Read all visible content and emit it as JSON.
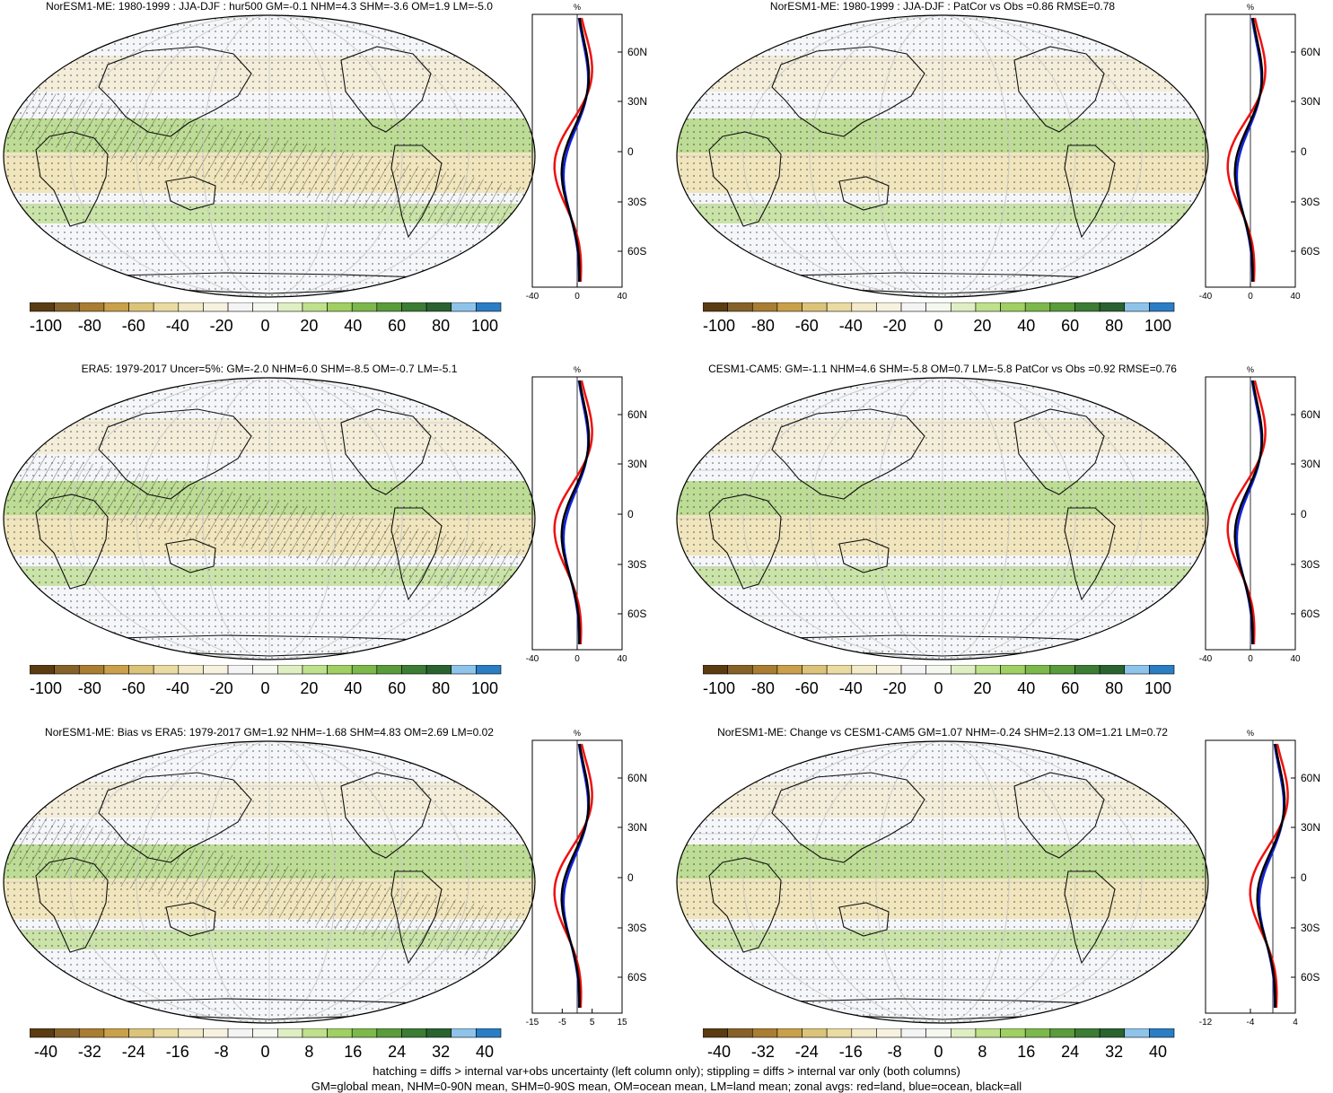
{
  "panels": [
    {
      "id": "p1",
      "title": "NorESM1-ME: 1980-1999 : JJA-DJF : hur500 GM=-0.1 NHM=4.3 SHM=-3.6 OM=1.9 LM=-5.0",
      "hatching": true,
      "colorbar_labels": [
        "-100",
        "-80",
        "-60",
        "-40",
        "-20",
        "0",
        "20",
        "40",
        "60",
        "80",
        "100"
      ],
      "profile": {
        "unit": "%",
        "x_ticks": [
          "-40",
          "0",
          "40"
        ],
        "x_values": [
          -40,
          0,
          40
        ],
        "lat_ticks": [
          "60N",
          "30N",
          "0",
          "30S",
          "60S"
        ]
      }
    },
    {
      "id": "p2",
      "title": "NorESM1-ME: 1980-1999 : JJA-DJF : PatCor vs Obs =0.86 RMSE=0.78",
      "hatching": false,
      "colorbar_labels": [
        "-100",
        "-80",
        "-60",
        "-40",
        "-20",
        "0",
        "20",
        "40",
        "60",
        "80",
        "100"
      ],
      "profile": {
        "unit": "%",
        "x_ticks": [
          "-40",
          "0",
          "40"
        ],
        "x_values": [
          -40,
          0,
          40
        ],
        "lat_ticks": [
          "60N",
          "30N",
          "0",
          "30S",
          "60S"
        ]
      }
    },
    {
      "id": "p3",
      "title": "ERA5: 1979-2017 Uncer=5%: GM=-2.0 NHM=6.0 SHM=-8.5 OM=-0.7 LM=-5.1",
      "hatching": true,
      "colorbar_labels": [
        "-100",
        "-80",
        "-60",
        "-40",
        "-20",
        "0",
        "20",
        "40",
        "60",
        "80",
        "100"
      ],
      "profile": {
        "unit": "%",
        "x_ticks": [
          "-40",
          "0",
          "40"
        ],
        "x_values": [
          -40,
          0,
          40
        ],
        "lat_ticks": [
          "60N",
          "30N",
          "0",
          "30S",
          "60S"
        ]
      }
    },
    {
      "id": "p4",
      "title": "CESM1-CAM5: GM=-1.1 NHM=4.6 SHM=-5.8 OM=0.7 LM=-5.8 PatCor vs Obs =0.92 RMSE=0.76",
      "hatching": false,
      "colorbar_labels": [
        "-100",
        "-80",
        "-60",
        "-40",
        "-20",
        "0",
        "20",
        "40",
        "60",
        "80",
        "100"
      ],
      "profile": {
        "unit": "%",
        "x_ticks": [
          "-40",
          "0",
          "40"
        ],
        "x_values": [
          -40,
          0,
          40
        ],
        "lat_ticks": [
          "60N",
          "30N",
          "0",
          "30S",
          "60S"
        ]
      }
    },
    {
      "id": "p5",
      "title": "NorESM1-ME: Bias vs ERA5: 1979-2017 GM=1.92 NHM=-1.68 SHM=4.83 OM=2.69 LM=0.02",
      "hatching": true,
      "colorbar_labels": [
        "-40",
        "-32",
        "-24",
        "-16",
        "-8",
        "0",
        "8",
        "16",
        "24",
        "32",
        "40"
      ],
      "profile": {
        "unit": "%",
        "x_ticks": [
          "-15",
          "-5",
          "5",
          "15"
        ],
        "x_values": [
          -15,
          -5,
          5,
          15
        ],
        "lat_ticks": [
          "60N",
          "30N",
          "0",
          "30S",
          "60S"
        ]
      }
    },
    {
      "id": "p6",
      "title": "NorESM1-ME: Change vs CESM1-CAM5 GM=1.07 NHM=-0.24 SHM=2.13 OM=1.21 LM=0.72",
      "hatching": false,
      "colorbar_labels": [
        "-40",
        "-32",
        "-24",
        "-16",
        "-8",
        "0",
        "8",
        "16",
        "24",
        "32",
        "40"
      ],
      "profile": {
        "unit": "%",
        "x_ticks": [
          "-12",
          "-4",
          "4"
        ],
        "x_values": [
          -12,
          -4,
          4
        ],
        "lat_ticks": [
          "60N",
          "30N",
          "0",
          "30S",
          "60S"
        ]
      }
    }
  ],
  "colorbar_colors": [
    "#5a3b12",
    "#87612a",
    "#a97d32",
    "#c9a04b",
    "#dcc37a",
    "#eadba3",
    "#f2eac9",
    "#f7f2e0",
    "#f4f4f4",
    "#f4f8ef",
    "#dfefc3",
    "#bfe08c",
    "#a0cf63",
    "#7cb84b",
    "#5a9b3c",
    "#3c7c34",
    "#2a6330",
    "#8fc4ea",
    "#2b7dc4"
  ],
  "footer": {
    "line1": "hatching = diffs > internal var+obs uncertainty (left column only); stippling = diffs > internal var only (both columns)",
    "line2": "GM=global mean, NHM=0-90N mean, SHM=0-90S mean, OM=ocean mean, LM=land mean; zonal avgs: red=land, blue=ocean, black=all"
  }
}
